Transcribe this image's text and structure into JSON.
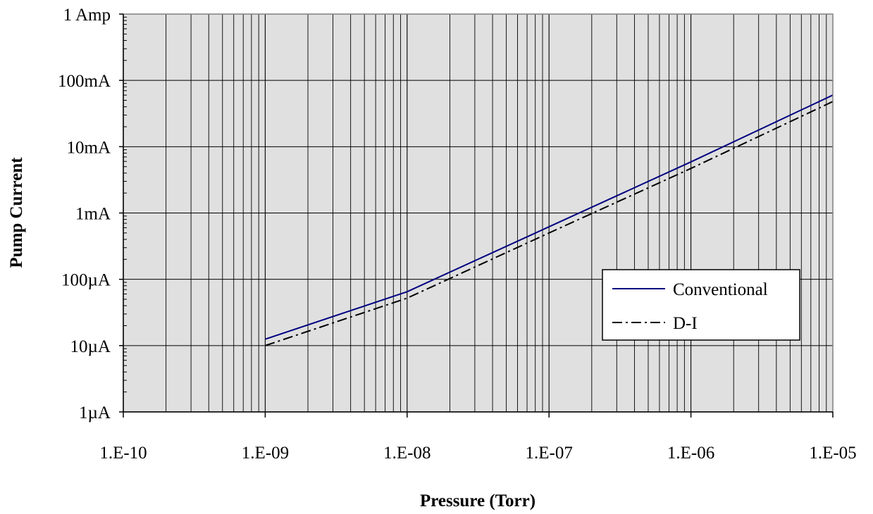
{
  "chart_data": {
    "type": "line",
    "title": "",
    "xlabel": "Pressure (Torr)",
    "ylabel": "Pump Current",
    "x_scale": "log",
    "y_scale": "log",
    "xlim": [
      1e-10,
      1e-05
    ],
    "ylim": [
      1e-06,
      1
    ],
    "x_tick_values": [
      1e-10,
      1e-09,
      1e-08,
      1e-07,
      1e-06,
      1e-05
    ],
    "x_tick_labels": [
      "1.E-10",
      "1.E-09",
      "1.E-08",
      "1.E-07",
      "1.E-06",
      "1.E-05"
    ],
    "y_tick_values": [
      1,
      0.1,
      0.01,
      0.001,
      0.0001,
      1e-05,
      1e-06
    ],
    "y_tick_labels": [
      "1 Amp",
      "100mA",
      "10mA",
      "1mA",
      "100µA",
      "10µA",
      "1µA"
    ],
    "grid": true,
    "legend_position": "right",
    "plot_background": "#e0e0e0",
    "series": [
      {
        "name": "Conventional",
        "color": "#000080",
        "style": "solid",
        "x": [
          1e-09,
          1e-08,
          1e-07,
          1e-06,
          1e-05
        ],
        "y": [
          1.25e-05,
          6.5e-05,
          0.00062,
          0.0059,
          0.06
        ]
      },
      {
        "name": "D-I",
        "color": "#000000",
        "style": "dash-dot",
        "x": [
          1e-09,
          1e-08,
          1e-07,
          1e-06,
          1e-05
        ],
        "y": [
          1e-05,
          5.2e-05,
          0.0005,
          0.0047,
          0.048
        ]
      }
    ]
  }
}
